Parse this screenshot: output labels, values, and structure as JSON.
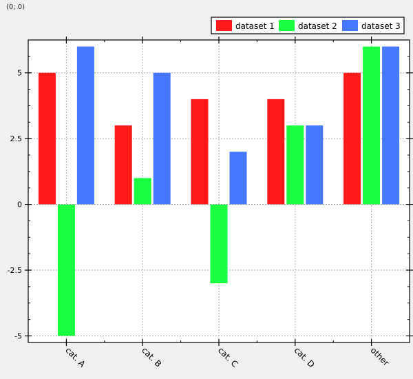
{
  "coordinate_readout": "(0; 0)",
  "chart_data": {
    "type": "bar",
    "categories": [
      "cat. A",
      "cat. B",
      "cat. C",
      "cat. D",
      "other"
    ],
    "series": [
      {
        "name": "dataset 1",
        "color": "#ff1a1a",
        "values": [
          5,
          3,
          4,
          4,
          5
        ]
      },
      {
        "name": "dataset 2",
        "color": "#1aff40",
        "values": [
          -5,
          1,
          -3,
          3,
          6
        ]
      },
      {
        "name": "dataset 3",
        "color": "#4577ff",
        "values": [
          6,
          5,
          2,
          3,
          6
        ]
      }
    ],
    "title": "",
    "xlabel": "",
    "ylabel": "",
    "ylim": [
      -5.25,
      6.25
    ],
    "yticks": [
      -5,
      -2.5,
      0,
      2.5,
      5
    ],
    "ytick_labels": [
      "-5",
      "-2.5",
      "0",
      "2.5",
      "5"
    ],
    "grid": true,
    "legend_position": "top-right"
  }
}
